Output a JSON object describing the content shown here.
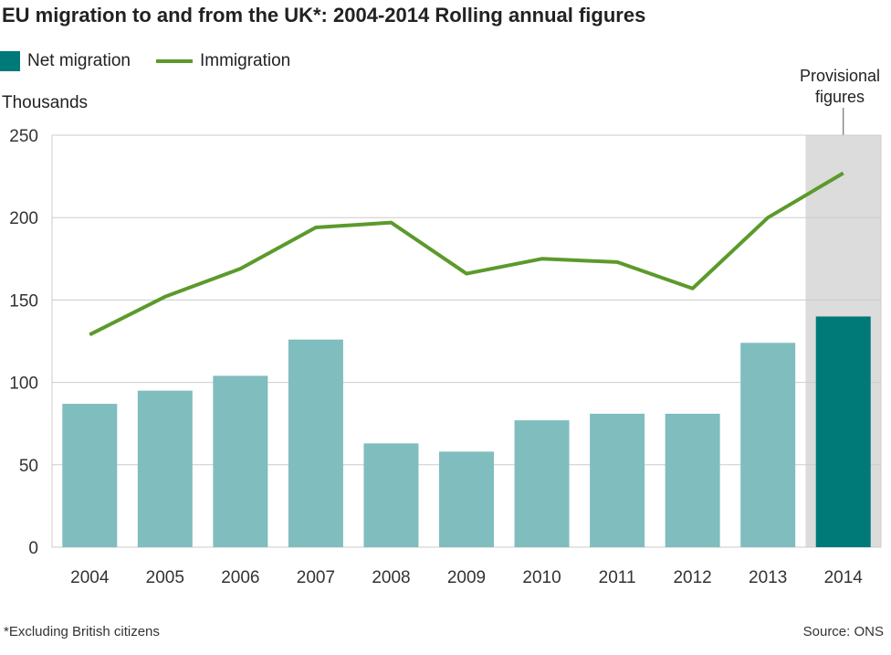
{
  "chart_data": {
    "type": "bar",
    "title": "EU migration to and from the UK*: 2004-2014 Rolling annual figures",
    "ylabel": "Thousands",
    "xlabel": "",
    "ylim": [
      0,
      250
    ],
    "yticks": [
      0,
      50,
      100,
      150,
      200,
      250
    ],
    "grid": true,
    "legend_position": "top-left",
    "categories": [
      "2004",
      "2005",
      "2006",
      "2007",
      "2008",
      "2009",
      "2010",
      "2011",
      "2012",
      "2013",
      "2014"
    ],
    "series": [
      {
        "name": "Net migration",
        "type": "bar",
        "values": [
          87,
          95,
          104,
          126,
          63,
          58,
          77,
          81,
          81,
          124,
          140
        ]
      },
      {
        "name": "Immigration",
        "type": "line",
        "values": [
          129,
          152,
          169,
          194,
          197,
          166,
          175,
          173,
          157,
          200,
          227
        ]
      }
    ],
    "annotation": "Provisional figures",
    "provisional_category": "2014",
    "footnote": "*Excluding British citizens",
    "source": "Source: ONS",
    "colors": {
      "bar": "#80bdbe",
      "bar_provisional": "#007a78",
      "line": "#5b9a2b",
      "shade": "#dcdcdc",
      "grid": "#cccccc"
    }
  }
}
